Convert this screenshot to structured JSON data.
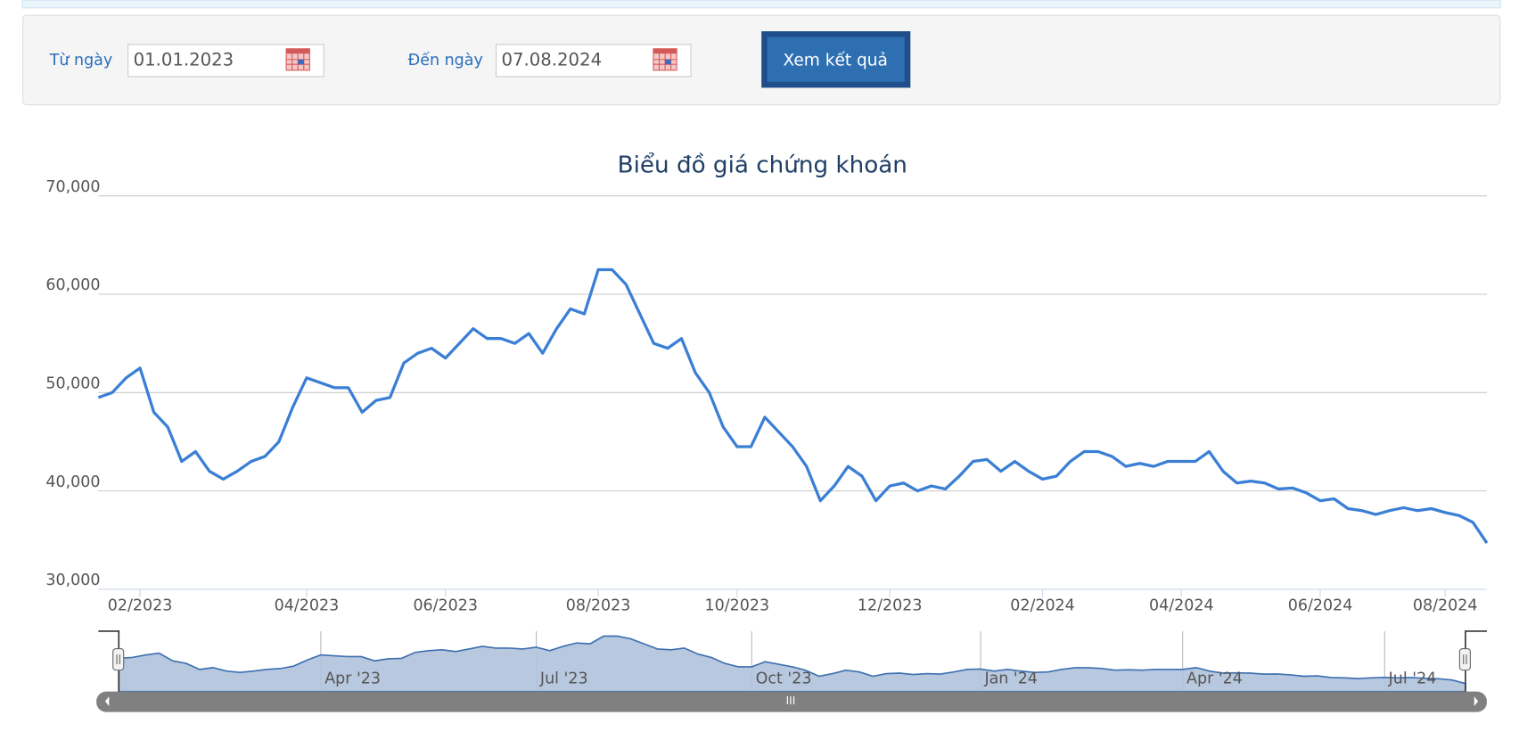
{
  "form": {
    "from_label": "Từ ngày",
    "from_value": "01.01.2023",
    "to_label": "Đến ngày",
    "to_value": "07.08.2024",
    "button": "Xem kết quả"
  },
  "chart_data": {
    "type": "line",
    "title": "Biểu đồ giá chứng khoán",
    "categories": [
      null,
      null,
      null,
      "02/2023",
      null,
      null,
      null,
      null,
      null,
      null,
      null,
      null,
      null,
      null,
      null,
      "04/2023",
      null,
      null,
      null,
      null,
      null,
      null,
      null,
      null,
      null,
      "06/2023",
      null,
      null,
      null,
      null,
      null,
      null,
      null,
      null,
      null,
      null,
      "08/2023",
      null,
      null,
      null,
      null,
      null,
      null,
      null,
      null,
      null,
      "10/2023",
      null,
      null,
      null,
      null,
      null,
      null,
      null,
      null,
      null,
      null,
      "12/2023",
      null,
      null,
      null,
      null,
      null,
      null,
      null,
      null,
      null,
      null,
      "02/2024",
      null,
      null,
      null,
      null,
      null,
      null,
      null,
      null,
      null,
      "04/2024",
      null,
      null,
      null,
      null,
      null,
      null,
      null,
      null,
      null,
      "06/2024",
      null,
      null,
      null,
      null,
      null,
      null,
      null,
      null,
      "08/2024",
      null,
      null,
      null
    ],
    "values": [
      49500,
      50000,
      51500,
      52500,
      48000,
      46500,
      43000,
      44000,
      42000,
      41200,
      42000,
      43000,
      43500,
      45000,
      48500,
      51500,
      51000,
      50500,
      50500,
      48000,
      49200,
      49500,
      53000,
      54000,
      54500,
      53500,
      55000,
      56500,
      55500,
      55500,
      55000,
      56000,
      54000,
      56500,
      58500,
      58000,
      62500,
      62500,
      61000,
      58000,
      55000,
      54500,
      55500,
      52000,
      50000,
      46500,
      44500,
      44500,
      47500,
      46000,
      44500,
      42500,
      39000,
      40500,
      42500,
      41500,
      39000,
      40500,
      40800,
      40000,
      40500,
      40200,
      41500,
      43000,
      43200,
      42000,
      43000,
      42000,
      41200,
      41500,
      43000,
      44000,
      44000,
      43500,
      42500,
      42800,
      42500,
      43000,
      43000,
      43000,
      44000,
      42000,
      40800,
      41000,
      40800,
      40200,
      40300,
      39800,
      39000,
      39200,
      38200,
      38000,
      37600,
      38000,
      38300,
      38000,
      38200,
      37800,
      37500,
      36800,
      34700
    ],
    "color": "#3a7fd5",
    "ylim": [
      30000,
      70000
    ],
    "yticks": [
      {
        "value": 30000,
        "label": "30,000"
      },
      {
        "value": 40000,
        "label": "40,000"
      },
      {
        "value": 50000,
        "label": "50,000"
      },
      {
        "value": 60000,
        "label": "60,000"
      },
      {
        "value": 70000,
        "label": "70,000"
      }
    ],
    "grid": true,
    "navigator": {
      "categories": [
        null,
        null,
        null,
        null,
        null,
        null,
        null,
        null,
        null,
        null,
        null,
        null,
        null,
        null,
        null,
        "Apr '23",
        null,
        null,
        null,
        null,
        null,
        null,
        null,
        null,
        null,
        null,
        null,
        null,
        null,
        null,
        null,
        "Jul '23",
        null,
        null,
        null,
        null,
        null,
        null,
        null,
        null,
        null,
        null,
        null,
        null,
        null,
        null,
        null,
        "Oct '23",
        null,
        null,
        null,
        null,
        null,
        null,
        null,
        null,
        null,
        null,
        null,
        null,
        null,
        null,
        null,
        null,
        "Jan '24",
        null,
        null,
        null,
        null,
        null,
        null,
        null,
        null,
        null,
        null,
        null,
        null,
        null,
        null,
        "Apr '24",
        null,
        null,
        null,
        null,
        null,
        null,
        null,
        null,
        null,
        null,
        null,
        null,
        null,
        null,
        "Jul '24",
        null,
        null,
        null,
        null,
        null,
        null
      ]
    }
  }
}
